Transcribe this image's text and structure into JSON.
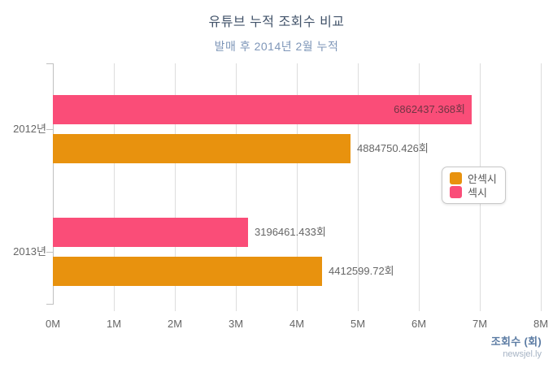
{
  "chart_data": {
    "type": "bar",
    "orientation": "horizontal",
    "title": "유튜브 누적 조회수 비교",
    "subtitle": "발매 후 2014년 2월 누적",
    "categories": [
      "2012년",
      "2013년"
    ],
    "series": [
      {
        "name": "섹시",
        "color": "#FA4D78",
        "values": [
          6862437.368,
          3196461.433
        ],
        "value_labels": [
          "6862437.368회",
          "3196461.433회"
        ]
      },
      {
        "name": "안섹시",
        "color": "#E8920E",
        "values": [
          4884750.426,
          4412599.72
        ],
        "value_labels": [
          "4884750.426회",
          "4412599.72회"
        ]
      }
    ],
    "x_axis": {
      "label": "조회수 (회)",
      "ticks": [
        "0M",
        "1M",
        "2M",
        "3M",
        "4M",
        "5M",
        "6M",
        "7M",
        "8M"
      ],
      "min": 0,
      "max": 8000000
    },
    "grid": true,
    "legend": {
      "position": "right",
      "items": [
        {
          "label": "안섹시",
          "color": "#E8920E"
        },
        {
          "label": "섹시",
          "color": "#FA4D78"
        }
      ]
    },
    "watermark": "newsjel.ly",
    "colors": {
      "background": "#FFFFFF",
      "title": "#42536A",
      "subtitle": "#7E96B8",
      "axis_text": "#666666",
      "value_label": "#666666",
      "value_label_inside": "rgba(40,40,40,0.65)",
      "gridline": "#DDDDDD",
      "axis_line": "#C0C0C0",
      "xlabel": "#5B7BA3",
      "watermark": "#A6B3C4"
    }
  }
}
